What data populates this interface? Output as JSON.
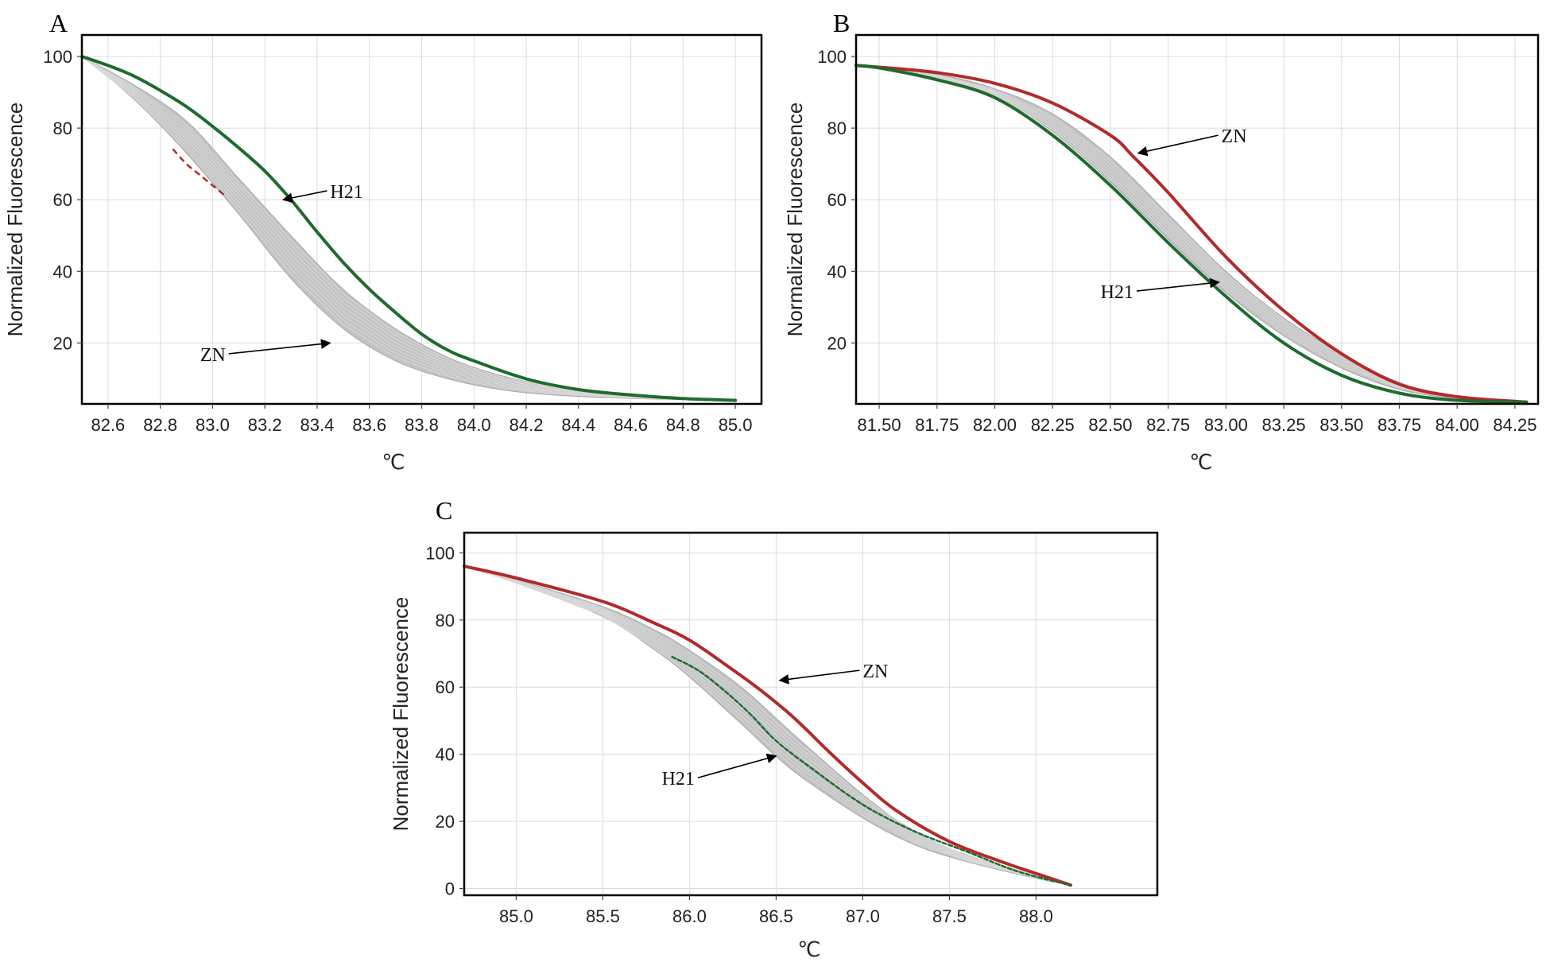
{
  "chart_data": [
    {
      "panel": "A",
      "type": "line",
      "xlabel": "℃",
      "ylabel": "Normalized Fluorescence",
      "xlim": [
        82.5,
        85.1
      ],
      "ylim": [
        3,
        106
      ],
      "x_ticks": [
        82.6,
        82.8,
        83.0,
        83.2,
        83.4,
        83.6,
        83.8,
        84.0,
        84.2,
        84.4,
        84.6,
        84.8,
        85.0
      ],
      "x_tick_labels": [
        "82.6",
        "82.8",
        "83.0",
        "83.2",
        "83.4",
        "83.6",
        "83.8",
        "84.0",
        "84.2",
        "84.4",
        "84.6",
        "84.8",
        "85.0"
      ],
      "y_ticks": [
        20,
        40,
        60,
        80,
        100
      ],
      "y_tick_labels": [
        "20",
        "40",
        "60",
        "80",
        "100"
      ],
      "gray_band": {
        "color": "#c3c3c3",
        "upper": [
          [
            82.5,
            100
          ],
          [
            82.7,
            92
          ],
          [
            82.9,
            82
          ],
          [
            83.1,
            66
          ],
          [
            83.3,
            50
          ],
          [
            83.5,
            35
          ],
          [
            83.7,
            24
          ],
          [
            83.9,
            16
          ],
          [
            84.1,
            11
          ],
          [
            84.3,
            8
          ],
          [
            84.6,
            5.5
          ],
          [
            85.0,
            4
          ]
        ],
        "lower": [
          [
            82.5,
            100
          ],
          [
            82.7,
            88
          ],
          [
            82.9,
            73
          ],
          [
            83.1,
            56
          ],
          [
            83.3,
            38
          ],
          [
            83.5,
            24
          ],
          [
            83.7,
            15
          ],
          [
            83.9,
            10
          ],
          [
            84.1,
            7
          ],
          [
            84.3,
            5.5
          ],
          [
            84.6,
            4.5
          ],
          [
            85.0,
            4
          ]
        ],
        "line_count": 9
      },
      "series": [
        {
          "name": "H21",
          "color": "#1e6b2e",
          "x": [
            82.5,
            82.6,
            82.7,
            82.8,
            82.9,
            83.0,
            83.1,
            83.2,
            83.3,
            83.4,
            83.5,
            83.6,
            83.7,
            83.8,
            83.9,
            84.0,
            84.2,
            84.4,
            84.6,
            84.8,
            85.0
          ],
          "y": [
            100,
            97.5,
            94.5,
            90.5,
            86,
            80.5,
            74.5,
            68,
            60,
            51,
            42.5,
            35,
            28.5,
            22.5,
            18,
            15,
            10,
            7,
            5.5,
            4.5,
            4
          ]
        },
        {
          "name": "ZN",
          "color": "#b22a2a",
          "x": [
            82.85,
            82.9,
            82.95,
            83.0,
            83.05
          ],
          "y": [
            74,
            70,
            67,
            64,
            61
          ]
        }
      ],
      "annotations": [
        {
          "text": "H21",
          "x": 83.45,
          "y": 62.5,
          "target_x": 83.27,
          "target_y": 60
        },
        {
          "text": "ZN",
          "x": 83.05,
          "y": 17,
          "target_x": 83.45,
          "target_y": 20
        }
      ]
    },
    {
      "panel": "B",
      "type": "line",
      "xlabel": "℃",
      "ylabel": "Normalized Fluorescence",
      "xlim": [
        81.4,
        84.35
      ],
      "ylim": [
        3,
        106
      ],
      "x_ticks": [
        81.5,
        81.75,
        82.0,
        82.25,
        82.5,
        82.75,
        83.0,
        83.25,
        83.5,
        83.75,
        84.0,
        84.25
      ],
      "x_tick_labels": [
        "81.50",
        "81.75",
        "82.00",
        "82.25",
        "82.50",
        "82.75",
        "83.00",
        "83.25",
        "83.50",
        "83.75",
        "84.00",
        "84.25"
      ],
      "y_ticks": [
        20,
        40,
        60,
        80,
        100
      ],
      "y_tick_labels": [
        "20",
        "40",
        "60",
        "80",
        "100"
      ],
      "gray_band": {
        "color": "#c3c3c3",
        "upper": [
          [
            81.4,
            97.5
          ],
          [
            81.75,
            95
          ],
          [
            82.0,
            91
          ],
          [
            82.25,
            84
          ],
          [
            82.5,
            72
          ],
          [
            82.75,
            56
          ],
          [
            83.0,
            40
          ],
          [
            83.25,
            27
          ],
          [
            83.5,
            17
          ],
          [
            83.75,
            9
          ],
          [
            84.0,
            5
          ],
          [
            84.3,
            3.5
          ]
        ],
        "lower": [
          [
            81.4,
            97.5
          ],
          [
            81.75,
            94
          ],
          [
            82.0,
            89
          ],
          [
            82.25,
            79
          ],
          [
            82.5,
            65
          ],
          [
            82.75,
            49
          ],
          [
            83.0,
            34
          ],
          [
            83.25,
            22
          ],
          [
            83.5,
            13
          ],
          [
            83.75,
            7
          ],
          [
            84.0,
            4.5
          ],
          [
            84.3,
            3.5
          ]
        ],
        "line_count": 7
      },
      "series": [
        {
          "name": "ZN",
          "color": "#b22a2a",
          "x": [
            81.4,
            81.5,
            81.75,
            82.0,
            82.25,
            82.5,
            82.6,
            82.75,
            83.0,
            83.25,
            83.5,
            83.75,
            84.0,
            84.3
          ],
          "y": [
            97.5,
            97,
            95.5,
            92.5,
            87,
            78,
            72,
            62,
            44,
            29,
            17,
            8.5,
            5,
            3.5
          ]
        },
        {
          "name": "H21",
          "color": "#1e6b2e",
          "x": [
            81.4,
            81.5,
            81.75,
            82.0,
            82.25,
            82.5,
            82.75,
            83.0,
            83.25,
            83.5,
            83.75,
            84.0,
            84.3
          ],
          "y": [
            97.5,
            96.8,
            93.5,
            88.5,
            78,
            64,
            48,
            33,
            20,
            11,
            6,
            4,
            3.5
          ]
        }
      ],
      "annotations": [
        {
          "text": "ZN",
          "x": 82.98,
          "y": 78,
          "target_x": 82.62,
          "target_y": 73
        },
        {
          "text": "H21",
          "x": 82.6,
          "y": 34.5,
          "target_x": 82.97,
          "target_y": 37
        }
      ]
    },
    {
      "panel": "C",
      "type": "line",
      "xlabel": "℃",
      "ylabel": "Normalized Fluorescence",
      "xlim": [
        84.7,
        88.7
      ],
      "ylim": [
        -2,
        106
      ],
      "x_ticks": [
        85.0,
        85.5,
        86.0,
        86.5,
        87.0,
        87.5,
        88.0
      ],
      "x_tick_labels": [
        "85.0",
        "85.5",
        "86.0",
        "86.5",
        "87.0",
        "87.5",
        "88.0"
      ],
      "y_ticks": [
        0,
        20,
        40,
        60,
        80,
        100
      ],
      "y_tick_labels": [
        "0",
        "20",
        "40",
        "60",
        "80",
        "100"
      ],
      "gray_band": {
        "color": "#c3c3c3",
        "upper": [
          [
            84.7,
            96
          ],
          [
            85.0,
            92
          ],
          [
            85.5,
            84
          ],
          [
            85.8,
            77
          ],
          [
            86.0,
            71
          ],
          [
            86.3,
            60
          ],
          [
            86.6,
            46
          ],
          [
            87.0,
            28
          ],
          [
            87.3,
            17
          ],
          [
            87.6,
            10
          ],
          [
            88.0,
            4
          ],
          [
            88.2,
            1
          ]
        ],
        "lower": [
          [
            84.7,
            96
          ],
          [
            85.0,
            91
          ],
          [
            85.5,
            81
          ],
          [
            85.8,
            71
          ],
          [
            86.0,
            63
          ],
          [
            86.3,
            49
          ],
          [
            86.6,
            35
          ],
          [
            87.0,
            21
          ],
          [
            87.3,
            13
          ],
          [
            87.6,
            8
          ],
          [
            88.0,
            3
          ],
          [
            88.2,
            1
          ]
        ],
        "line_count": 9
      },
      "series": [
        {
          "name": "ZN",
          "color": "#b22a2a",
          "x": [
            84.7,
            85.0,
            85.5,
            85.8,
            86.0,
            86.2,
            86.4,
            86.6,
            86.8,
            87.0,
            87.2,
            87.5,
            87.8,
            88.0,
            88.2
          ],
          "y": [
            96,
            92.5,
            85.5,
            79,
            74,
            67,
            59.5,
            51,
            41,
            31.5,
            23,
            14,
            8,
            4.5,
            1
          ]
        },
        {
          "name": "H21",
          "color": "#1e6b2e",
          "x": [
            85.9,
            86.05,
            86.2,
            86.35,
            86.5,
            86.7,
            87.0,
            87.3,
            87.6,
            87.9,
            88.2
          ],
          "y": [
            69,
            65,
            59,
            52,
            44,
            36,
            25,
            17,
            11,
            5,
            1
          ]
        }
      ],
      "annotations": [
        {
          "text": "ZN",
          "x": 87.0,
          "y": 65,
          "target_x": 86.52,
          "target_y": 62
        },
        {
          "text": "H21",
          "x": 86.03,
          "y": 33,
          "target_x": 86.5,
          "target_y": 39.5
        }
      ]
    }
  ]
}
